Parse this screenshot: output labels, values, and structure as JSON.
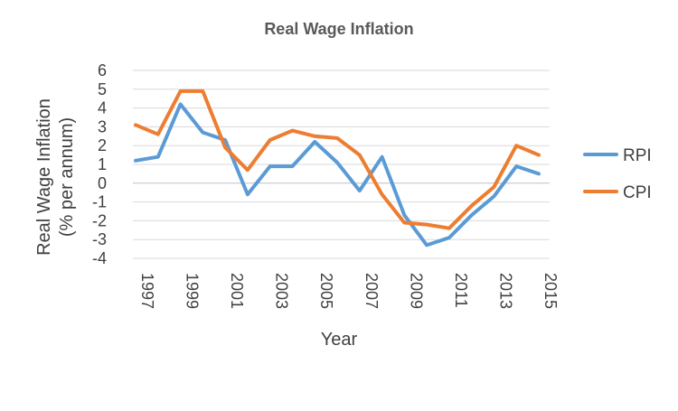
{
  "chart_data": {
    "type": "line",
    "title": "Real Wage Inflation",
    "xlabel": "Year",
    "ylabel_lines": [
      "Real Wage Inflation",
      "(% per annum)"
    ],
    "ylim": [
      -4,
      6
    ],
    "yticks": [
      6,
      5,
      4,
      3,
      2,
      1,
      0,
      -1,
      -2,
      -3,
      -4
    ],
    "x": [
      1997,
      1998,
      1999,
      2000,
      2001,
      2002,
      2003,
      2004,
      2005,
      2006,
      2007,
      2008,
      2009,
      2010,
      2011,
      2012,
      2013,
      2014,
      2015
    ],
    "xtick_labels": [
      "1997",
      "1999",
      "2001",
      "2003",
      "2005",
      "2007",
      "2009",
      "2011",
      "2013",
      "2015"
    ],
    "grid": true,
    "legend_position": "right",
    "series": [
      {
        "name": "RPI",
        "color": "#5b9bd5",
        "values": [
          1.2,
          1.4,
          4.2,
          2.7,
          2.3,
          -0.6,
          0.9,
          0.9,
          2.2,
          1.1,
          -0.4,
          1.4,
          -1.7,
          -3.3,
          -2.9,
          -1.7,
          -0.7,
          0.9,
          0.5
        ]
      },
      {
        "name": "CPI",
        "color": "#ed7d31",
        "values": [
          3.1,
          2.6,
          4.9,
          4.9,
          1.9,
          0.7,
          2.3,
          2.8,
          2.5,
          2.4,
          1.5,
          -0.6,
          -2.1,
          -2.2,
          -2.4,
          -1.2,
          -0.2,
          2.0,
          1.5
        ]
      }
    ]
  }
}
